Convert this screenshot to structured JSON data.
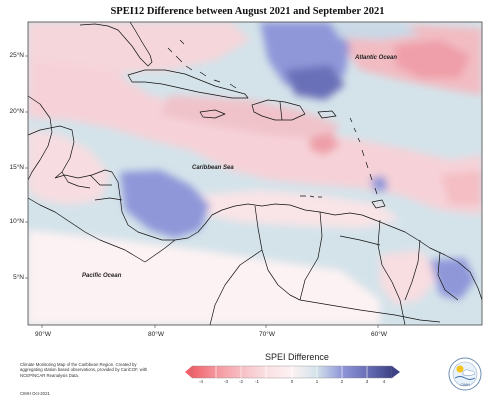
{
  "title": "SPEI12 Difference between August 2021 and September 2021",
  "map": {
    "lat_labels": [
      "25°N",
      "20°N",
      "15°N",
      "10°N",
      "5°N"
    ],
    "lon_labels": [
      "90°W",
      "80°W",
      "70°W",
      "60°W"
    ],
    "regions": {
      "atlantic": "Atlantic Ocean",
      "caribbean": "Caribbean Sea",
      "pacific": "Pacific Ocean"
    }
  },
  "legend": {
    "title": "SPEI Difference",
    "ticks": [
      "-4",
      "-3",
      "-2",
      "-1",
      "0",
      "1",
      "2",
      "3",
      "4"
    ],
    "colors": [
      "#f0616a",
      "#f4969d",
      "#f7c0c5",
      "#fae0e3",
      "#fdf2f3",
      "#d4e3ea",
      "#8f97d9",
      "#6a70b8",
      "#3d4385"
    ]
  },
  "credits": {
    "text": "Climate Monitoring Map of the Caribbean Region. Created by aggregating station based observations, provided by CariCOF, with NCEP/NCAR Reanalysis Data.",
    "date": "CIMH Oct-2021",
    "logo_text": "CIMH"
  }
}
